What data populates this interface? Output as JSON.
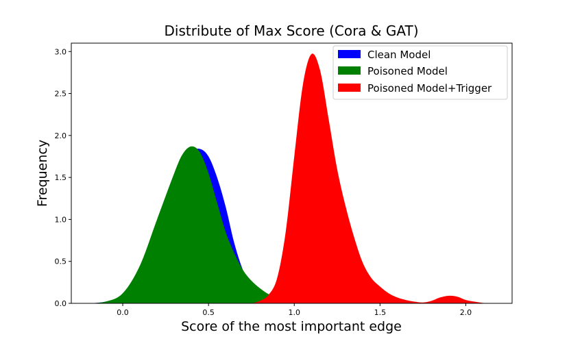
{
  "chart_data": {
    "type": "area",
    "title": "Distribute of Max Score (Cora & GAT)",
    "xlabel": "Score of the most important edge",
    "ylabel": "Frequency",
    "xlim": [
      -0.3,
      2.27
    ],
    "ylim": [
      0,
      3.1
    ],
    "xticks": [
      0.0,
      0.5,
      1.0,
      1.5,
      2.0
    ],
    "xtick_labels": [
      "0.0",
      "0.5",
      "1.0",
      "1.5",
      "2.0"
    ],
    "yticks": [
      0.0,
      0.5,
      1.0,
      1.5,
      2.0,
      2.5,
      3.0
    ],
    "ytick_labels": [
      "0.0",
      "0.5",
      "1.0",
      "1.5",
      "2.0",
      "2.5",
      "3.0"
    ],
    "grid": false,
    "legend_position": "upper right",
    "series": [
      {
        "name": "Clean Model",
        "color": "#0000ff",
        "x": [
          -0.2,
          -0.1,
          0.0,
          0.1,
          0.2,
          0.3,
          0.35,
          0.4,
          0.45,
          0.5,
          0.55,
          0.6,
          0.65,
          0.7,
          0.75,
          0.8,
          0.85,
          0.9
        ],
        "y": [
          0.0,
          0.02,
          0.1,
          0.35,
          0.8,
          1.35,
          1.62,
          1.8,
          1.84,
          1.75,
          1.5,
          1.15,
          0.72,
          0.4,
          0.2,
          0.08,
          0.03,
          0.0
        ]
      },
      {
        "name": "Poisoned Model",
        "color": "#008000",
        "x": [
          -0.2,
          -0.1,
          0.0,
          0.1,
          0.2,
          0.3,
          0.35,
          0.4,
          0.45,
          0.5,
          0.55,
          0.6,
          0.65,
          0.7,
          0.75,
          0.8,
          0.85,
          0.9,
          0.95,
          1.0
        ],
        "y": [
          0.0,
          0.02,
          0.12,
          0.45,
          1.0,
          1.55,
          1.78,
          1.87,
          1.8,
          1.55,
          1.2,
          0.85,
          0.6,
          0.4,
          0.27,
          0.18,
          0.11,
          0.06,
          0.02,
          0.0
        ]
      },
      {
        "name": "Poisoned Model+Trigger",
        "color": "#ff0000",
        "x": [
          0.75,
          0.8,
          0.85,
          0.9,
          0.95,
          1.0,
          1.05,
          1.1,
          1.15,
          1.2,
          1.25,
          1.3,
          1.35,
          1.4,
          1.45,
          1.5,
          1.55,
          1.6,
          1.65,
          1.7,
          1.75,
          1.8,
          1.85,
          1.9,
          1.95,
          2.0,
          2.05,
          2.1,
          2.15
        ],
        "y": [
          0.0,
          0.03,
          0.1,
          0.3,
          0.85,
          1.75,
          2.6,
          2.97,
          2.78,
          2.2,
          1.6,
          1.15,
          0.78,
          0.48,
          0.3,
          0.2,
          0.12,
          0.07,
          0.04,
          0.02,
          0.01,
          0.03,
          0.07,
          0.09,
          0.08,
          0.04,
          0.02,
          0.005,
          0.0
        ]
      }
    ]
  }
}
